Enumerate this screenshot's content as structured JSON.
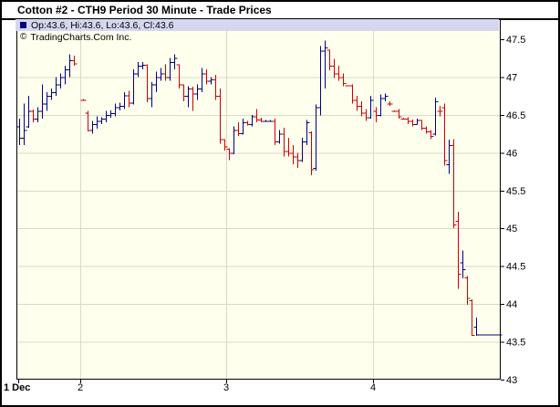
{
  "title": "Cotton #2 - CTH9 Period 30 Minute - Trade Prices",
  "legend": {
    "ohlc_text": "Op:43.6, Hi:43.6, Lo:43.6, Cl:43.6",
    "copyright_symbol": "©",
    "copyright_text": "TradingCharts.Com Inc."
  },
  "colors": {
    "up": "#000080",
    "down": "#CC0000",
    "plot_bg": "#FFFFEE",
    "grid": "#D9D9C6",
    "legend_bg": "#D4D7EF",
    "axis": "#000000",
    "page_bg": "#FFFFFF"
  },
  "chart_data": {
    "type": "ohlc-bar",
    "title": "Cotton #2 - CTH9 Period 30 Minute - Trade Prices",
    "interval": "30 Minute",
    "ylim": [
      43,
      47.5
    ],
    "grid": true,
    "y_axis_side": "right",
    "yticks": [
      {
        "value": 47.5,
        "label": "47.5"
      },
      {
        "value": 47.0,
        "label": "47"
      },
      {
        "value": 46.5,
        "label": "46.5"
      },
      {
        "value": 46.0,
        "label": "46"
      },
      {
        "value": 45.5,
        "label": "45.5"
      },
      {
        "value": 45.0,
        "label": "45"
      },
      {
        "value": 44.5,
        "label": "44.5"
      },
      {
        "value": 44.0,
        "label": "44"
      },
      {
        "value": 43.5,
        "label": "43.5"
      },
      {
        "value": 43.0,
        "label": "43"
      }
    ],
    "last_bar_ohlc": {
      "open": 43.6,
      "high": 43.6,
      "low": 43.6,
      "close": 43.6
    },
    "days": [
      {
        "label": "1 Dec",
        "bars": [
          [
            46.35,
            46.45,
            46.1,
            46.2
          ],
          [
            46.2,
            46.65,
            46.1,
            46.3
          ],
          [
            46.35,
            46.75,
            46.33,
            46.55
          ],
          [
            46.55,
            46.57,
            46.4,
            46.45
          ],
          [
            46.45,
            46.6,
            46.4,
            46.55
          ],
          [
            46.55,
            46.9,
            46.45,
            46.65
          ],
          [
            46.65,
            46.8,
            46.55,
            46.75
          ],
          [
            46.75,
            46.85,
            46.7,
            46.8
          ],
          [
            46.8,
            47.0,
            46.75,
            46.9
          ],
          [
            46.9,
            47.05,
            46.85,
            47.0
          ],
          [
            47.0,
            47.15,
            46.9,
            47.1
          ],
          [
            47.1,
            47.3,
            47.0,
            47.22
          ],
          [
            47.22,
            47.28,
            47.15,
            47.18
          ]
        ]
      },
      {
        "label": "2",
        "bars": [
          [
            46.7,
            46.71,
            46.69,
            46.7
          ],
          [
            46.53,
            46.55,
            46.28,
            46.3
          ],
          [
            46.3,
            46.42,
            46.25,
            46.38
          ],
          [
            46.38,
            46.48,
            46.32,
            46.42
          ],
          [
            46.42,
            46.47,
            46.38,
            46.45
          ],
          [
            46.45,
            46.55,
            46.4,
            46.5
          ],
          [
            46.5,
            46.56,
            46.46,
            46.52
          ],
          [
            46.52,
            46.65,
            46.48,
            46.6
          ],
          [
            46.6,
            46.66,
            46.56,
            46.62
          ],
          [
            46.62,
            46.8,
            46.58,
            46.76
          ],
          [
            46.76,
            46.82,
            46.6,
            46.66
          ],
          [
            46.66,
            47.1,
            46.64,
            47.05
          ],
          [
            47.05,
            47.2,
            47.0,
            47.15
          ],
          [
            47.15,
            47.2,
            47.1,
            47.16
          ],
          [
            47.16,
            47.17,
            46.67,
            46.72
          ],
          [
            46.72,
            46.93,
            46.6,
            46.9
          ],
          [
            46.9,
            47.07,
            46.8,
            47.0
          ],
          [
            47.0,
            47.12,
            46.95,
            47.05
          ],
          [
            47.05,
            47.17,
            46.95,
            47.0
          ],
          [
            47.0,
            47.25,
            46.95,
            47.2
          ],
          [
            47.2,
            47.3,
            47.1,
            47.25
          ],
          [
            47.17,
            47.17,
            46.85,
            46.9
          ],
          [
            46.9,
            46.9,
            46.68,
            46.75
          ],
          [
            46.75,
            46.88,
            46.6,
            46.85
          ],
          [
            46.85,
            46.87,
            46.55,
            46.78
          ],
          [
            46.78,
            46.9,
            46.7,
            46.85
          ],
          [
            46.85,
            47.12,
            46.8,
            47.05
          ],
          [
            47.05,
            47.1,
            46.9,
            46.95
          ],
          [
            46.95,
            47.0,
            46.9,
            46.97
          ],
          [
            46.97,
            47.03,
            46.7,
            46.75
          ],
          [
            46.75,
            46.85,
            46.12,
            46.18
          ],
          [
            46.18,
            46.18,
            46.03,
            46.08
          ]
        ]
      },
      {
        "label": "3",
        "bars": [
          [
            46.05,
            46.06,
            45.9,
            46.0
          ],
          [
            46.0,
            46.35,
            45.98,
            46.3
          ],
          [
            46.3,
            46.4,
            46.22,
            46.26
          ],
          [
            46.26,
            46.45,
            46.24,
            46.4
          ],
          [
            46.4,
            46.42,
            46.36,
            46.38
          ],
          [
            46.38,
            46.5,
            46.35,
            46.48
          ],
          [
            46.48,
            46.58,
            46.4,
            46.44
          ],
          [
            46.44,
            46.46,
            46.4,
            46.42
          ],
          [
            46.42,
            46.43,
            46.41,
            46.42
          ],
          [
            46.42,
            46.43,
            46.41,
            46.42
          ],
          [
            46.42,
            46.45,
            46.1,
            46.15
          ],
          [
            46.15,
            46.3,
            46.12,
            46.25
          ],
          [
            46.25,
            46.33,
            45.95,
            46.02
          ],
          [
            46.02,
            46.2,
            45.95,
            46.0
          ],
          [
            46.0,
            46.1,
            45.85,
            45.95
          ],
          [
            45.95,
            46.0,
            45.8,
            45.9
          ],
          [
            45.9,
            46.2,
            45.88,
            46.15
          ],
          [
            46.15,
            46.43,
            46.1,
            46.4
          ],
          [
            46.27,
            46.28,
            45.7,
            45.78
          ],
          [
            45.8,
            46.64,
            45.76,
            46.6
          ],
          [
            46.6,
            47.41,
            46.49,
            47.35
          ],
          [
            47.35,
            47.48,
            46.85,
            47.39
          ],
          [
            47.36,
            47.36,
            47.09,
            47.15
          ],
          [
            47.15,
            47.24,
            46.99,
            47.05
          ],
          [
            47.05,
            47.15,
            46.95,
            47.0
          ],
          [
            47.0,
            47.05,
            46.88,
            46.92
          ],
          [
            46.89,
            46.9,
            46.88,
            46.89
          ],
          [
            46.89,
            46.9,
            46.65,
            46.7
          ],
          [
            46.7,
            46.75,
            46.55,
            46.62
          ],
          [
            46.62,
            46.68,
            46.48,
            46.53
          ],
          [
            46.53,
            46.58,
            46.42,
            46.47
          ],
          [
            46.47,
            46.75,
            46.45,
            46.7
          ]
        ]
      },
      {
        "label": "4",
        "bars": [
          [
            46.55,
            46.6,
            46.4,
            46.5
          ],
          [
            46.5,
            46.77,
            46.48,
            46.72
          ],
          [
            46.72,
            46.78,
            46.68,
            46.75
          ],
          [
            46.65,
            46.68,
            46.62,
            46.65
          ],
          [
            46.55,
            46.56,
            46.54,
            46.55
          ],
          [
            46.55,
            46.58,
            46.45,
            46.48
          ],
          [
            46.45,
            46.46,
            46.44,
            46.45
          ],
          [
            46.45,
            46.47,
            46.38,
            46.42
          ],
          [
            46.42,
            46.44,
            46.35,
            46.38
          ],
          [
            46.38,
            46.45,
            46.37,
            46.43
          ],
          [
            46.43,
            46.43,
            46.3,
            46.33
          ],
          [
            46.33,
            46.35,
            46.25,
            46.28
          ],
          [
            46.28,
            46.3,
            46.18,
            46.22
          ],
          [
            46.25,
            46.73,
            46.23,
            46.68
          ],
          [
            46.55,
            46.62,
            46.48,
            46.55
          ],
          [
            46.6,
            46.65,
            45.83,
            45.9
          ],
          [
            45.85,
            46.17,
            45.72,
            46.1
          ],
          [
            46.1,
            46.18,
            45.0,
            45.05
          ],
          [
            45.1,
            45.22,
            44.2,
            44.4
          ],
          [
            44.55,
            44.71,
            44.34,
            44.46
          ],
          [
            44.35,
            44.37,
            43.99,
            44.08
          ],
          [
            44.05,
            44.06,
            43.58,
            43.59
          ],
          [
            43.7,
            43.82,
            43.58,
            43.6
          ],
          [
            43.6,
            43.6,
            43.6,
            43.6
          ],
          [
            43.6,
            43.6,
            43.6,
            43.6
          ],
          [
            43.6,
            43.6,
            43.6,
            43.6
          ],
          [
            43.6,
            43.6,
            43.6,
            43.6
          ],
          [
            43.6,
            43.6,
            43.6,
            43.6
          ]
        ]
      }
    ]
  }
}
